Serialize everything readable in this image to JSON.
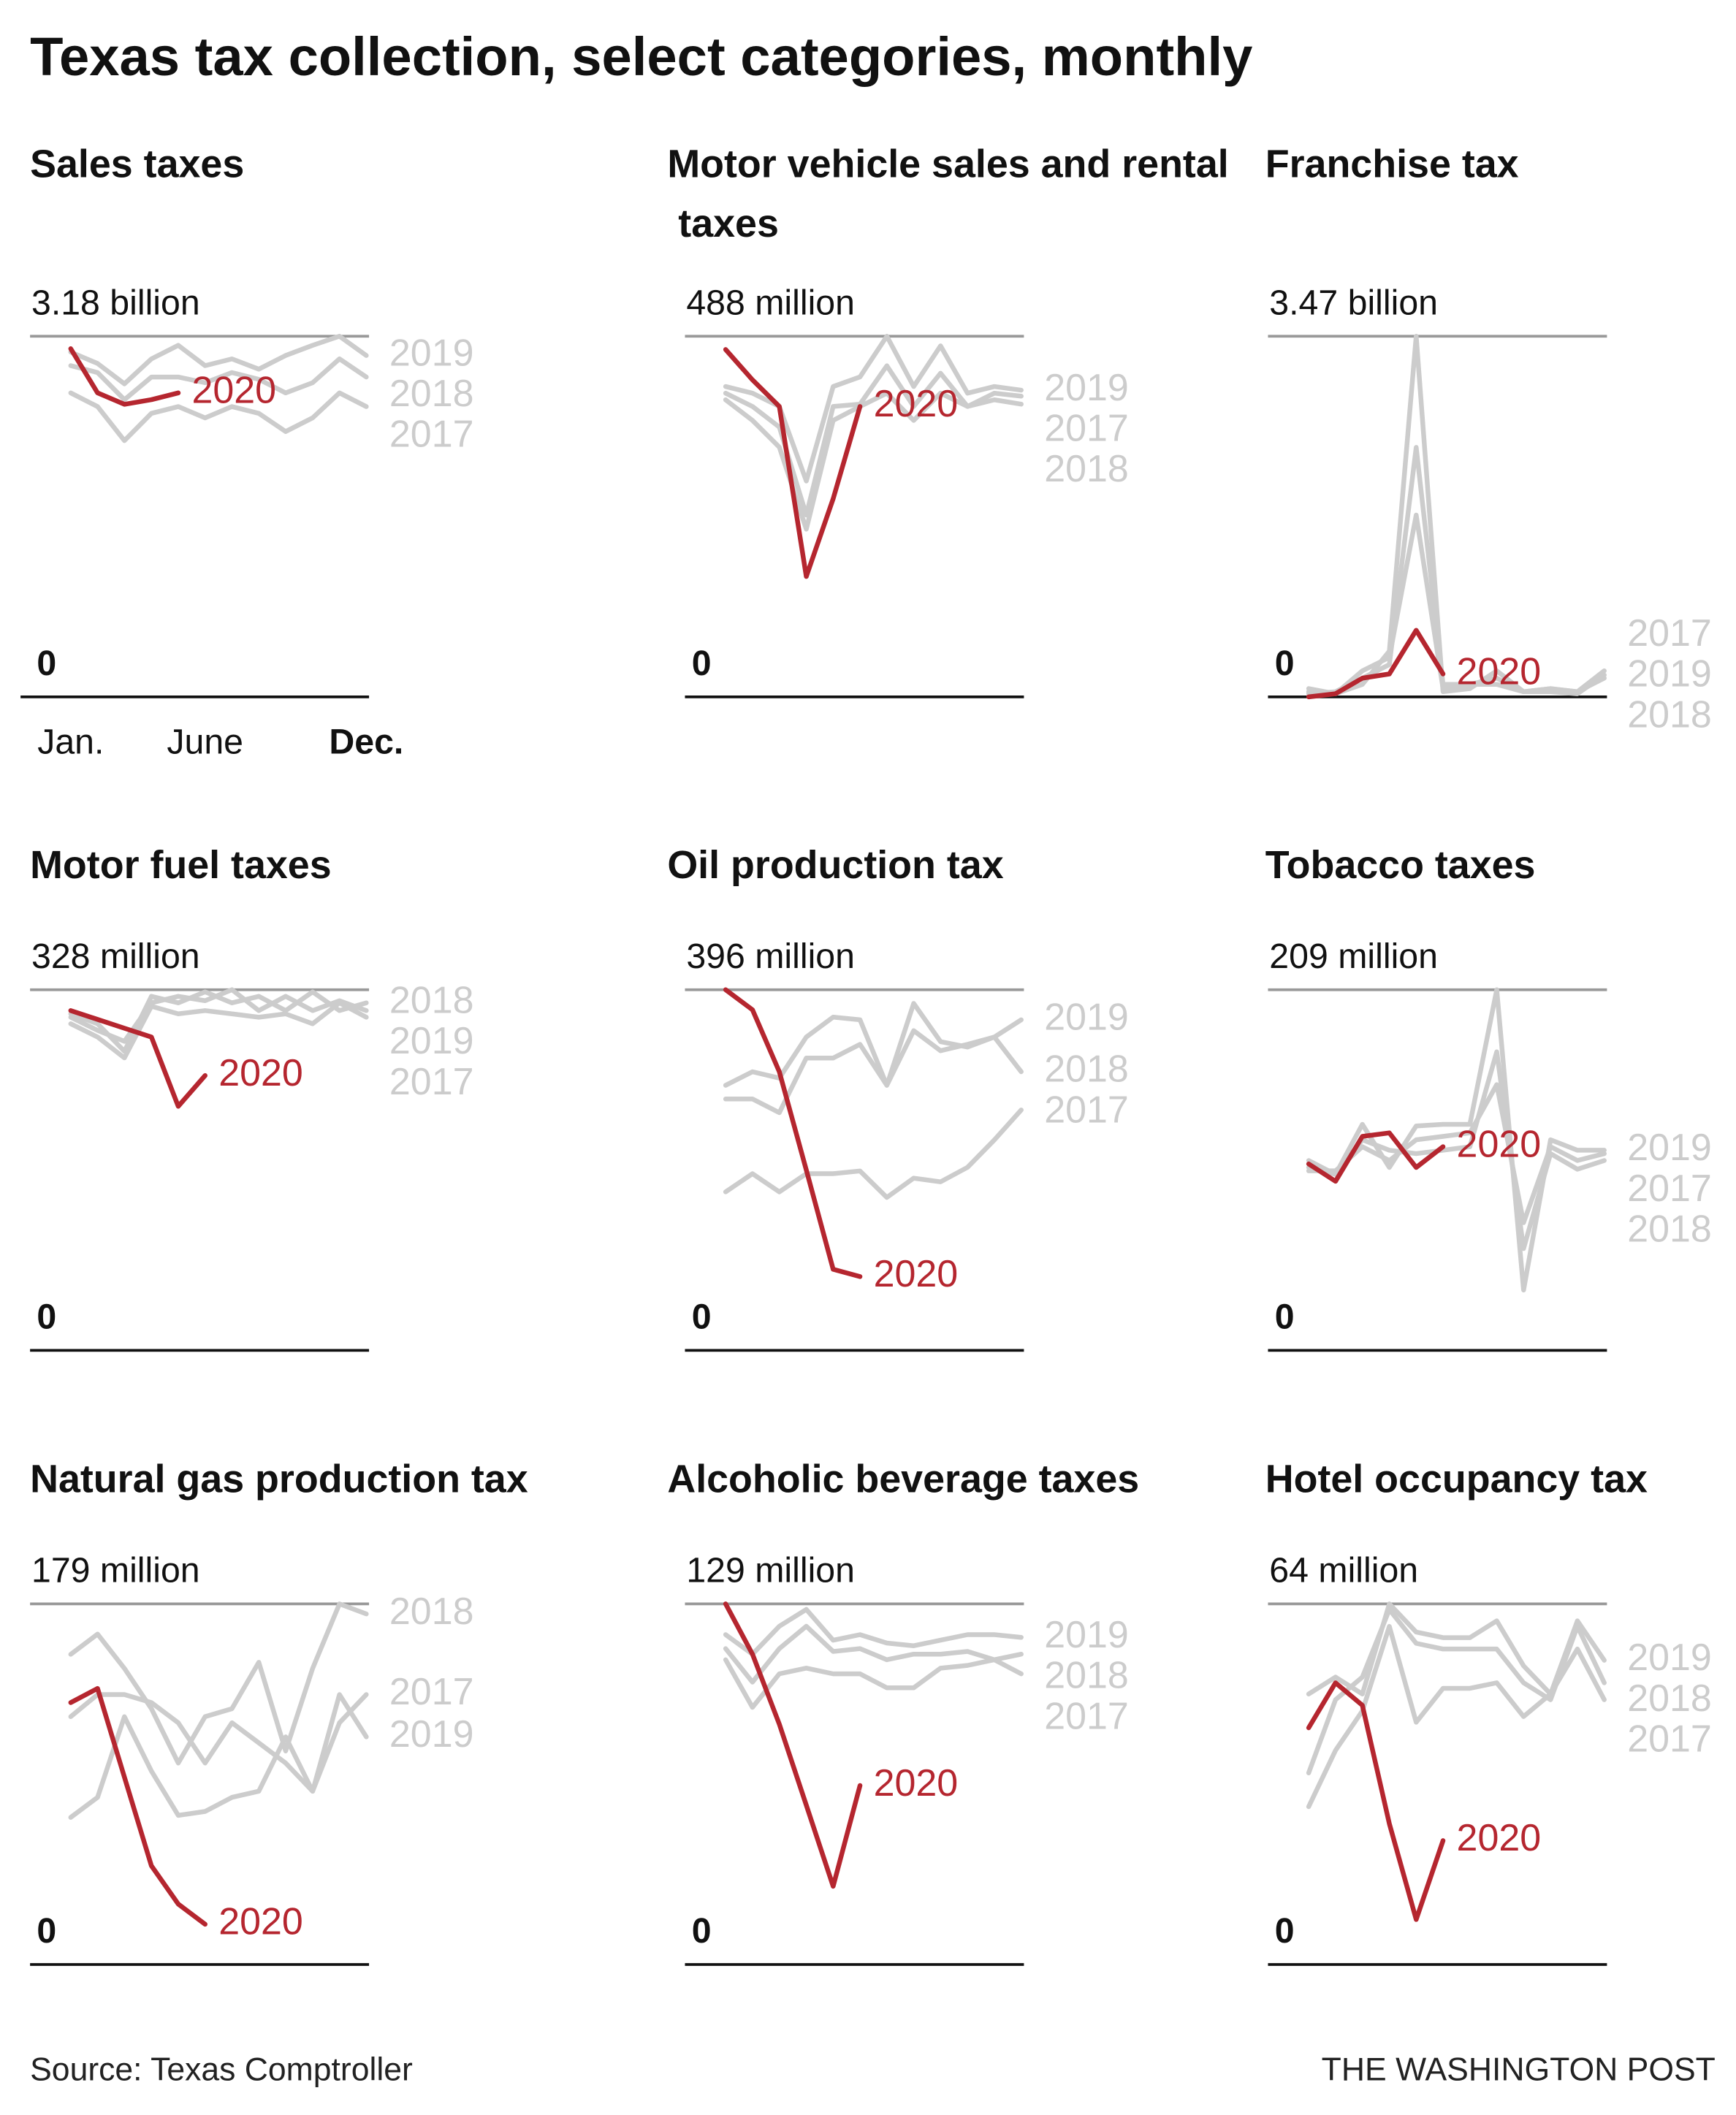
{
  "title": "Texas tax collection, select categories, monthly",
  "source": "Source: Texas Comptroller",
  "credit": "THE WASHINGTON POST",
  "chart_data": [
    {
      "type": "line",
      "title": "Sales taxes",
      "categories": [
        "Jan.",
        null,
        null,
        null,
        null,
        "June",
        null,
        null,
        null,
        null,
        null,
        "Dec."
      ],
      "ylim": [
        0,
        3.18
      ],
      "yticks": [
        0,
        {
          "value": 3.18,
          "label": "3.18 billion"
        }
      ],
      "series": [
        {
          "name": "2017",
          "color": "#cccccc",
          "values": [
            2.68,
            2.56,
            2.26,
            2.5,
            2.56,
            2.46,
            2.56,
            2.5,
            2.34,
            2.46,
            2.68,
            2.56
          ]
        },
        {
          "name": "2018",
          "color": "#cccccc",
          "values": [
            2.92,
            2.86,
            2.62,
            2.82,
            2.82,
            2.77,
            2.86,
            2.8,
            2.68,
            2.77,
            2.98,
            2.82
          ]
        },
        {
          "name": "2019",
          "color": "#cccccc",
          "values": [
            3.04,
            2.94,
            2.76,
            2.98,
            3.1,
            2.92,
            2.98,
            2.89,
            3.01,
            3.1,
            3.18,
            3.01
          ]
        },
        {
          "name": "2020",
          "color": "#b5262f",
          "values": [
            3.07,
            2.68,
            2.58,
            2.62,
            2.68,
            null,
            null,
            null,
            null,
            null,
            null,
            null
          ]
        }
      ]
    },
    {
      "type": "line",
      "title": "Motor vehicle sales and rental taxes",
      "ylim": [
        0,
        488
      ],
      "yticks": [
        0,
        {
          "value": 488,
          "label": "488 million"
        }
      ],
      "series": [
        {
          "name": "2017",
          "color": "#cccccc",
          "values": [
            402,
            374,
            338,
            227,
            374,
            393,
            411,
            374,
            411,
            393,
            411,
            407
          ]
        },
        {
          "name": "2018",
          "color": "#cccccc",
          "values": [
            411,
            393,
            365,
            246,
            393,
            396,
            448,
            393,
            438,
            393,
            402,
            396
          ]
        },
        {
          "name": "2019",
          "color": "#cccccc",
          "values": [
            420,
            411,
            393,
            292,
            420,
            433,
            488,
            420,
            475,
            411,
            420,
            415
          ]
        },
        {
          "name": "2020",
          "color": "#b5262f",
          "values": [
            470,
            429,
            393,
            163,
            268,
            393,
            null,
            null,
            null,
            null,
            null,
            null
          ]
        }
      ]
    },
    {
      "type": "line",
      "title": "Franchise tax",
      "ylim": [
        0,
        3.47
      ],
      "yticks": [
        0,
        {
          "value": 3.47,
          "label": "3.47 billion"
        }
      ],
      "series": [
        {
          "name": "2017",
          "color": "#cccccc",
          "values": [
            0.05,
            0.03,
            0.25,
            0.38,
            1.75,
            0.08,
            0.12,
            0.12,
            0.05,
            0.08,
            0.05,
            0.25
          ]
        },
        {
          "name": "2018",
          "color": "#cccccc",
          "values": [
            0.03,
            0.05,
            0.18,
            0.31,
            2.4,
            0.12,
            0.12,
            0.18,
            0.05,
            0.08,
            0.05,
            0.18
          ]
        },
        {
          "name": "2019",
          "color": "#cccccc",
          "values": [
            0.08,
            0.03,
            0.12,
            0.44,
            3.47,
            0.05,
            0.08,
            0.25,
            0.05,
            0.05,
            0.03,
            0.21
          ]
        },
        {
          "name": "2020",
          "color": "#b5262f",
          "values": [
            0,
            0.03,
            0.18,
            0.22,
            0.64,
            0.22,
            null,
            null,
            null,
            null,
            null,
            null
          ]
        }
      ]
    },
    {
      "type": "line",
      "title": "Motor fuel taxes",
      "ylim": [
        0,
        328
      ],
      "yticks": [
        0,
        {
          "value": 328,
          "label": "328 million"
        }
      ],
      "series": [
        {
          "name": "2017",
          "color": "#cccccc",
          "values": [
            297,
            285,
            266,
            313,
            306,
            309,
            306,
            303,
            306,
            297,
            316,
            303
          ]
        },
        {
          "name": "2018",
          "color": "#cccccc",
          "values": [
            306,
            297,
            272,
            322,
            316,
            326,
            316,
            322,
            309,
            326,
            309,
            316
          ]
        },
        {
          "name": "2019",
          "color": "#cccccc",
          "values": [
            303,
            291,
            281,
            316,
            322,
            318,
            328,
            309,
            322,
            309,
            318,
            309
          ]
        },
        {
          "name": "2020",
          "color": "#b5262f",
          "values": [
            309,
            301,
            293,
            285,
            222,
            250,
            null,
            null,
            null,
            null,
            null,
            null
          ]
        }
      ]
    },
    {
      "type": "line",
      "title": "Oil production tax",
      "ylim": [
        0,
        396
      ],
      "yticks": [
        0,
        {
          "value": 396,
          "label": "396 million"
        }
      ],
      "series": [
        {
          "name": "2017",
          "color": "#cccccc",
          "values": [
            174,
            194,
            174,
            194,
            194,
            197,
            168,
            189,
            185,
            201,
            231,
            264
          ]
        },
        {
          "name": "2018",
          "color": "#cccccc",
          "values": [
            276,
            276,
            261,
            321,
            321,
            336,
            291,
            351,
            329,
            336,
            344,
            306
          ]
        },
        {
          "name": "2019",
          "color": "#cccccc",
          "values": [
            291,
            306,
            299,
            344,
            366,
            363,
            291,
            381,
            339,
            333,
            344,
            363
          ]
        },
        {
          "name": "2020",
          "color": "#b5262f",
          "values": [
            396,
            374,
            306,
            198,
            89,
            81,
            null,
            null,
            null,
            null,
            null,
            null
          ]
        }
      ]
    },
    {
      "type": "line",
      "title": "Tobacco taxes",
      "ylim": [
        0,
        209
      ],
      "yticks": [
        0,
        {
          "value": 209,
          "label": "209 million"
        }
      ],
      "series": [
        {
          "name": "2017",
          "color": "#cccccc",
          "values": [
            104,
            104,
            118,
            110,
            122,
            124,
            126,
            154,
            74,
            118,
            110,
            114
          ]
        },
        {
          "name": "2018",
          "color": "#cccccc",
          "values": [
            110,
            102,
            122,
            116,
            114,
            116,
            118,
            173,
            59,
            114,
            105,
            110
          ]
        },
        {
          "name": "2019",
          "color": "#cccccc",
          "values": [
            106,
            102,
            131,
            106,
            130,
            131,
            131,
            209,
            35,
            122,
            116,
            116
          ]
        },
        {
          "name": "2020",
          "color": "#b5262f",
          "values": [
            108,
            98,
            124,
            126,
            106,
            118,
            null,
            null,
            null,
            null,
            null,
            null
          ]
        }
      ]
    },
    {
      "type": "line",
      "title": "Natural gas production tax",
      "ylim": [
        0,
        179
      ],
      "yticks": [
        0,
        {
          "value": 179,
          "label": "179 million"
        }
      ],
      "series": [
        {
          "name": "2017",
          "color": "#cccccc",
          "values": [
            123,
            134,
            134,
            130,
            120,
            100,
            120,
            110,
            100,
            86,
            120,
            134
          ]
        },
        {
          "name": "2018",
          "color": "#cccccc",
          "values": [
            154,
            164,
            147,
            127,
            100,
            123,
            127,
            150,
            106,
            147,
            179,
            174
          ]
        },
        {
          "name": "2019",
          "color": "#cccccc",
          "values": [
            73,
            83,
            123,
            96,
            74,
            76,
            83,
            86,
            113,
            86,
            134,
            113
          ]
        },
        {
          "name": "2020",
          "color": "#b5262f",
          "values": [
            130,
            137,
            93,
            49,
            30,
            20,
            null,
            null,
            null,
            null,
            null,
            null
          ]
        }
      ]
    },
    {
      "type": "line",
      "title": "Alcoholic beverage taxes",
      "ylim": [
        0,
        129
      ],
      "yticks": [
        0,
        {
          "value": 129,
          "label": "129 million"
        }
      ],
      "series": [
        {
          "name": "2017",
          "color": "#cccccc",
          "values": [
            109,
            92,
            104,
            106,
            104,
            104,
            99,
            99,
            106,
            107,
            109,
            104
          ]
        },
        {
          "name": "2018",
          "color": "#cccccc",
          "values": [
            113,
            101,
            113,
            121,
            112,
            113,
            109,
            111,
            111,
            112,
            109,
            111
          ]
        },
        {
          "name": "2019",
          "color": "#cccccc",
          "values": [
            118,
            111,
            121,
            127,
            116,
            118,
            115,
            114,
            116,
            118,
            118,
            117
          ]
        },
        {
          "name": "2020",
          "color": "#b5262f",
          "values": [
            129,
            111,
            86,
            57,
            28,
            64,
            null,
            null,
            null,
            null,
            null,
            null
          ]
        }
      ]
    },
    {
      "type": "line",
      "title": "Hotel occupancy tax",
      "ylim": [
        0,
        64
      ],
      "yticks": [
        0,
        {
          "value": 64,
          "label": "64 million"
        }
      ],
      "series": [
        {
          "name": "2017",
          "color": "#cccccc",
          "values": [
            28,
            38,
            45,
            60,
            43,
            49,
            49,
            50,
            44,
            48,
            56,
            47
          ]
        },
        {
          "name": "2018",
          "color": "#cccccc",
          "values": [
            34,
            47,
            51,
            63,
            57,
            56,
            56,
            56,
            50,
            47,
            60,
            50
          ]
        },
        {
          "name": "2019",
          "color": "#cccccc",
          "values": [
            48,
            51,
            48,
            64,
            59,
            58,
            58,
            61,
            53,
            48,
            61,
            54
          ]
        },
        {
          "name": "2020",
          "color": "#b5262f",
          "values": [
            42,
            50,
            46,
            25,
            8,
            22,
            null,
            null,
            null,
            null,
            null,
            null
          ]
        }
      ]
    }
  ]
}
